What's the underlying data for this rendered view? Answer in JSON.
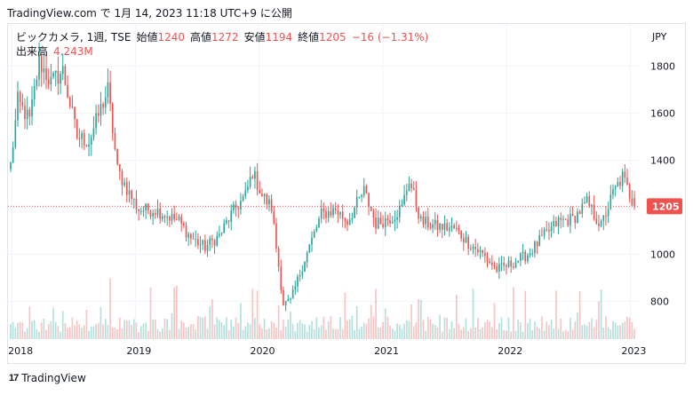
{
  "caption": "TradingView.com で 1月 14, 2023 11:18 UTC+9 に公開",
  "legend": {
    "symbol": "ビックカメラ, 1週, TSE",
    "open_label": "始値",
    "open": "1240",
    "high_label": "高値",
    "high": "1272",
    "low_label": "安値",
    "low": "1194",
    "close_label": "終値",
    "close": "1205",
    "change": "−16 (−1.31%)",
    "volume_label": "出来高",
    "volume": "4.243M"
  },
  "footer": {
    "logo": "17",
    "brand": "TradingView"
  },
  "colors": {
    "up": "#26a69a",
    "down": "#ef5350",
    "last_price": "#ef5350"
  },
  "chart_data": {
    "type": "candlestick",
    "currency": "JPY",
    "ylim": [
      640,
      1980
    ],
    "y_ticks": [
      800,
      1000,
      1200,
      1400,
      1600,
      1800
    ],
    "x_labels": [
      "2018",
      "2019",
      "2020",
      "2021",
      "2022",
      "2023"
    ],
    "last_price": 1205,
    "interval": "1週",
    "anchors": [
      [
        "2017-12-29",
        1380
      ],
      [
        "2018-01-19",
        1650
      ],
      [
        "2018-02-23",
        1570
      ],
      [
        "2018-03-23",
        1820
      ],
      [
        "2018-04-27",
        1730
      ],
      [
        "2018-06-01",
        1780
      ],
      [
        "2018-07-13",
        1500
      ],
      [
        "2018-08-17",
        1480
      ],
      [
        "2018-09-21",
        1620
      ],
      [
        "2018-10-12",
        1700
      ],
      [
        "2018-11-09",
        1360
      ],
      [
        "2018-12-14",
        1260
      ],
      [
        "2019-01-11",
        1190
      ],
      [
        "2019-03-01",
        1190
      ],
      [
        "2019-05-10",
        1140
      ],
      [
        "2019-06-14",
        1070
      ],
      [
        "2019-07-26",
        1030
      ],
      [
        "2019-09-06",
        1080
      ],
      [
        "2019-10-11",
        1170
      ],
      [
        "2019-11-22",
        1250
      ],
      [
        "2019-12-13",
        1350
      ],
      [
        "2020-01-10",
        1250
      ],
      [
        "2020-02-07",
        1200
      ],
      [
        "2020-02-21",
        1030
      ],
      [
        "2020-03-13",
        790
      ],
      [
        "2020-04-03",
        800
      ],
      [
        "2020-05-15",
        980
      ],
      [
        "2020-07-03",
        1170
      ],
      [
        "2020-08-14",
        1190
      ],
      [
        "2020-09-18",
        1140
      ],
      [
        "2020-11-06",
        1270
      ],
      [
        "2020-12-11",
        1130
      ],
      [
        "2021-01-29",
        1160
      ],
      [
        "2021-02-26",
        1200
      ],
      [
        "2021-03-19",
        1320
      ],
      [
        "2021-04-23",
        1140
      ],
      [
        "2021-06-04",
        1120
      ],
      [
        "2021-07-30",
        1110
      ],
      [
        "2021-09-10",
        1050
      ],
      [
        "2021-10-29",
        990
      ],
      [
        "2021-12-03",
        935
      ],
      [
        "2022-01-14",
        960
      ],
      [
        "2022-03-04",
        1000
      ],
      [
        "2022-04-22",
        1080
      ],
      [
        "2022-06-03",
        1140
      ],
      [
        "2022-07-15",
        1150
      ],
      [
        "2022-08-26",
        1220
      ],
      [
        "2022-10-07",
        1120
      ],
      [
        "2022-11-11",
        1260
      ],
      [
        "2022-12-09",
        1330
      ],
      [
        "2023-01-13",
        1205
      ]
    ]
  }
}
